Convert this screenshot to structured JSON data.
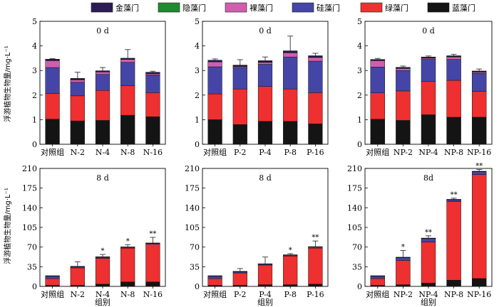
{
  "legend": [
    {
      "name": "金藻门",
      "color": "#2b1c55"
    },
    {
      "name": "隐藻门",
      "color": "#1f8a2f"
    },
    {
      "name": "裸藻门",
      "color": "#cf5fae"
    },
    {
      "name": "硅藻门",
      "color": "#4545a8"
    },
    {
      "name": "绿藻门",
      "color": "#ee3030"
    },
    {
      "name": "蓝藻门",
      "color": "#141414"
    }
  ],
  "ylabel": "浮游植物生物量/mg·L⁻¹",
  "xlabel": "组别",
  "chart_data": [
    {
      "type": "bar",
      "stacked": true,
      "panel_label": "0 d",
      "categories": [
        "对照组",
        "N-2",
        "N-4",
        "N-8",
        "N-16"
      ],
      "ylim": [
        0,
        5
      ],
      "yticks": [
        0,
        1,
        2,
        3,
        4,
        5
      ],
      "series": [
        {
          "name": "蓝藻门",
          "values": [
            1.02,
            0.95,
            0.97,
            1.18,
            1.12
          ]
        },
        {
          "name": "绿藻门",
          "values": [
            1.05,
            1.02,
            1.22,
            1.2,
            0.98
          ]
        },
        {
          "name": "硅藻门",
          "values": [
            1.05,
            0.55,
            0.65,
            0.95,
            0.72
          ]
        },
        {
          "name": "裸藻门",
          "values": [
            0.28,
            0.1,
            0.1,
            0.12,
            0.05
          ]
        },
        {
          "name": "隐藻门",
          "values": [
            0.02,
            0.02,
            0.02,
            0.02,
            0.02
          ]
        },
        {
          "name": "金藻门",
          "values": [
            0.04,
            0.04,
            0.03,
            0.03,
            0.04
          ]
        }
      ],
      "error": [
        0.02,
        0.25,
        0.13,
        0.35,
        0.04
      ],
      "sig": [
        "",
        "",
        "",
        "",
        ""
      ]
    },
    {
      "type": "bar",
      "stacked": true,
      "panel_label": "0 d",
      "categories": [
        "对照组",
        "P-2",
        "P-4",
        "P-8",
        "P-16"
      ],
      "ylim": [
        0,
        5
      ],
      "yticks": [
        0,
        1,
        2,
        3,
        4,
        5
      ],
      "series": [
        {
          "name": "蓝藻门",
          "values": [
            1.0,
            0.8,
            0.93,
            0.93,
            0.83
          ]
        },
        {
          "name": "绿藻门",
          "values": [
            1.05,
            1.45,
            1.42,
            1.32,
            1.27
          ]
        },
        {
          "name": "硅藻门",
          "values": [
            1.1,
            0.87,
            0.9,
            1.3,
            1.28
          ]
        },
        {
          "name": "裸藻门",
          "values": [
            0.2,
            0.04,
            0.08,
            0.17,
            0.15
          ]
        },
        {
          "name": "隐藻门",
          "values": [
            0.02,
            0.02,
            0.02,
            0.02,
            0.02
          ]
        },
        {
          "name": "金藻门",
          "values": [
            0.05,
            0.04,
            0.05,
            0.06,
            0.05
          ]
        }
      ],
      "error": [
        0.05,
        0.22,
        0.15,
        0.6,
        0.1
      ],
      "sig": [
        "",
        "",
        "",
        "",
        ""
      ]
    },
    {
      "type": "bar",
      "stacked": true,
      "panel_label": "0 d",
      "categories": [
        "对照组",
        "NP-2",
        "NP-4",
        "NP-8",
        "NP-16"
      ],
      "ylim": [
        0,
        5
      ],
      "yticks": [
        0,
        1,
        2,
        3,
        4,
        5
      ],
      "series": [
        {
          "name": "蓝藻门",
          "values": [
            1.02,
            0.97,
            1.2,
            1.1,
            1.1
          ]
        },
        {
          "name": "绿藻门",
          "values": [
            1.07,
            1.2,
            1.35,
            1.5,
            1.05
          ]
        },
        {
          "name": "硅藻门",
          "values": [
            1.05,
            0.83,
            0.9,
            0.85,
            0.73
          ]
        },
        {
          "name": "裸藻门",
          "values": [
            0.26,
            0.08,
            0.05,
            0.1,
            0.05
          ]
        },
        {
          "name": "隐藻门",
          "values": [
            0.02,
            0.02,
            0.02,
            0.02,
            0.02
          ]
        },
        {
          "name": "金藻门",
          "values": [
            0.03,
            0.03,
            0.03,
            0.03,
            0.03
          ]
        }
      ],
      "error": [
        0.04,
        0.05,
        0.04,
        0.06,
        0.08
      ],
      "sig": [
        "",
        "",
        "",
        "",
        ""
      ]
    },
    {
      "type": "bar",
      "stacked": true,
      "panel_label": "8 d",
      "categories": [
        "对照组",
        "N-2",
        "N-4",
        "N-8",
        "N-16"
      ],
      "ylim": [
        0,
        210
      ],
      "yticks": [
        0,
        35,
        70,
        105,
        140,
        175,
        210
      ],
      "series": [
        {
          "name": "蓝藻门",
          "values": [
            2,
            2,
            4,
            8,
            8
          ]
        },
        {
          "name": "绿藻门",
          "values": [
            12,
            31,
            46,
            60,
            67
          ]
        },
        {
          "name": "硅藻门",
          "values": [
            4,
            2,
            2,
            1.5,
            1.5
          ]
        },
        {
          "name": "裸藻门",
          "values": [
            0.5,
            0.3,
            0.3,
            0.3,
            0.3
          ]
        },
        {
          "name": "隐藻门",
          "values": [
            0.2,
            0.2,
            0.2,
            0.2,
            0.2
          ]
        },
        {
          "name": "金藻门",
          "values": [
            0.3,
            0.3,
            0.3,
            0.3,
            0.3
          ]
        }
      ],
      "error": [
        0,
        8,
        4,
        4,
        10
      ],
      "sig": [
        "",
        "",
        "*",
        "*",
        "**"
      ]
    },
    {
      "type": "bar",
      "stacked": true,
      "panel_label": "8 d",
      "categories": [
        "对照组",
        "P-2",
        "P-4",
        "P-8",
        "P-16"
      ],
      "ylim": [
        0,
        210
      ],
      "yticks": [
        0,
        35,
        70,
        105,
        140,
        175,
        210
      ],
      "series": [
        {
          "name": "蓝藻门",
          "values": [
            2,
            2,
            3,
            3,
            4
          ]
        },
        {
          "name": "绿藻门",
          "values": [
            12,
            22,
            35,
            51,
            64
          ]
        },
        {
          "name": "硅藻门",
          "values": [
            4,
            2,
            1.5,
            1.5,
            2
          ]
        },
        {
          "name": "裸藻门",
          "values": [
            0.5,
            0.3,
            0.3,
            0.3,
            0.3
          ]
        },
        {
          "name": "隐藻门",
          "values": [
            0.2,
            0.2,
            0.2,
            0.2,
            0.2
          ]
        },
        {
          "name": "金藻门",
          "values": [
            0.3,
            0.3,
            0.3,
            0.3,
            0.3
          ]
        }
      ],
      "error": [
        0,
        5,
        12,
        2,
        10
      ],
      "sig": [
        "",
        "",
        "",
        "*",
        "**"
      ]
    },
    {
      "type": "bar",
      "stacked": true,
      "panel_label": "8d",
      "categories": [
        "对照组",
        "NP-2",
        "NP-4",
        "NP-8",
        "NP-16"
      ],
      "ylim": [
        0,
        210
      ],
      "yticks": [
        0,
        35,
        70,
        105,
        140,
        175,
        210
      ],
      "series": [
        {
          "name": "蓝藻门",
          "values": [
            2,
            3,
            6,
            11,
            14
          ]
        },
        {
          "name": "绿藻门",
          "values": [
            12,
            43,
            73,
            140,
            185
          ]
        },
        {
          "name": "硅藻门",
          "values": [
            4,
            5,
            6,
            3,
            5
          ]
        },
        {
          "name": "裸藻门",
          "values": [
            0.5,
            0.3,
            0.3,
            0.3,
            0.3
          ]
        },
        {
          "name": "隐藻门",
          "values": [
            0.2,
            0.2,
            0.2,
            0.2,
            0.2
          ]
        },
        {
          "name": "金藻门",
          "values": [
            0.3,
            0.5,
            0.5,
            0.5,
            0.5
          ]
        }
      ],
      "error": [
        0,
        12,
        4,
        2,
        3
      ],
      "sig": [
        "",
        "*",
        "**",
        "**",
        "**"
      ]
    }
  ]
}
